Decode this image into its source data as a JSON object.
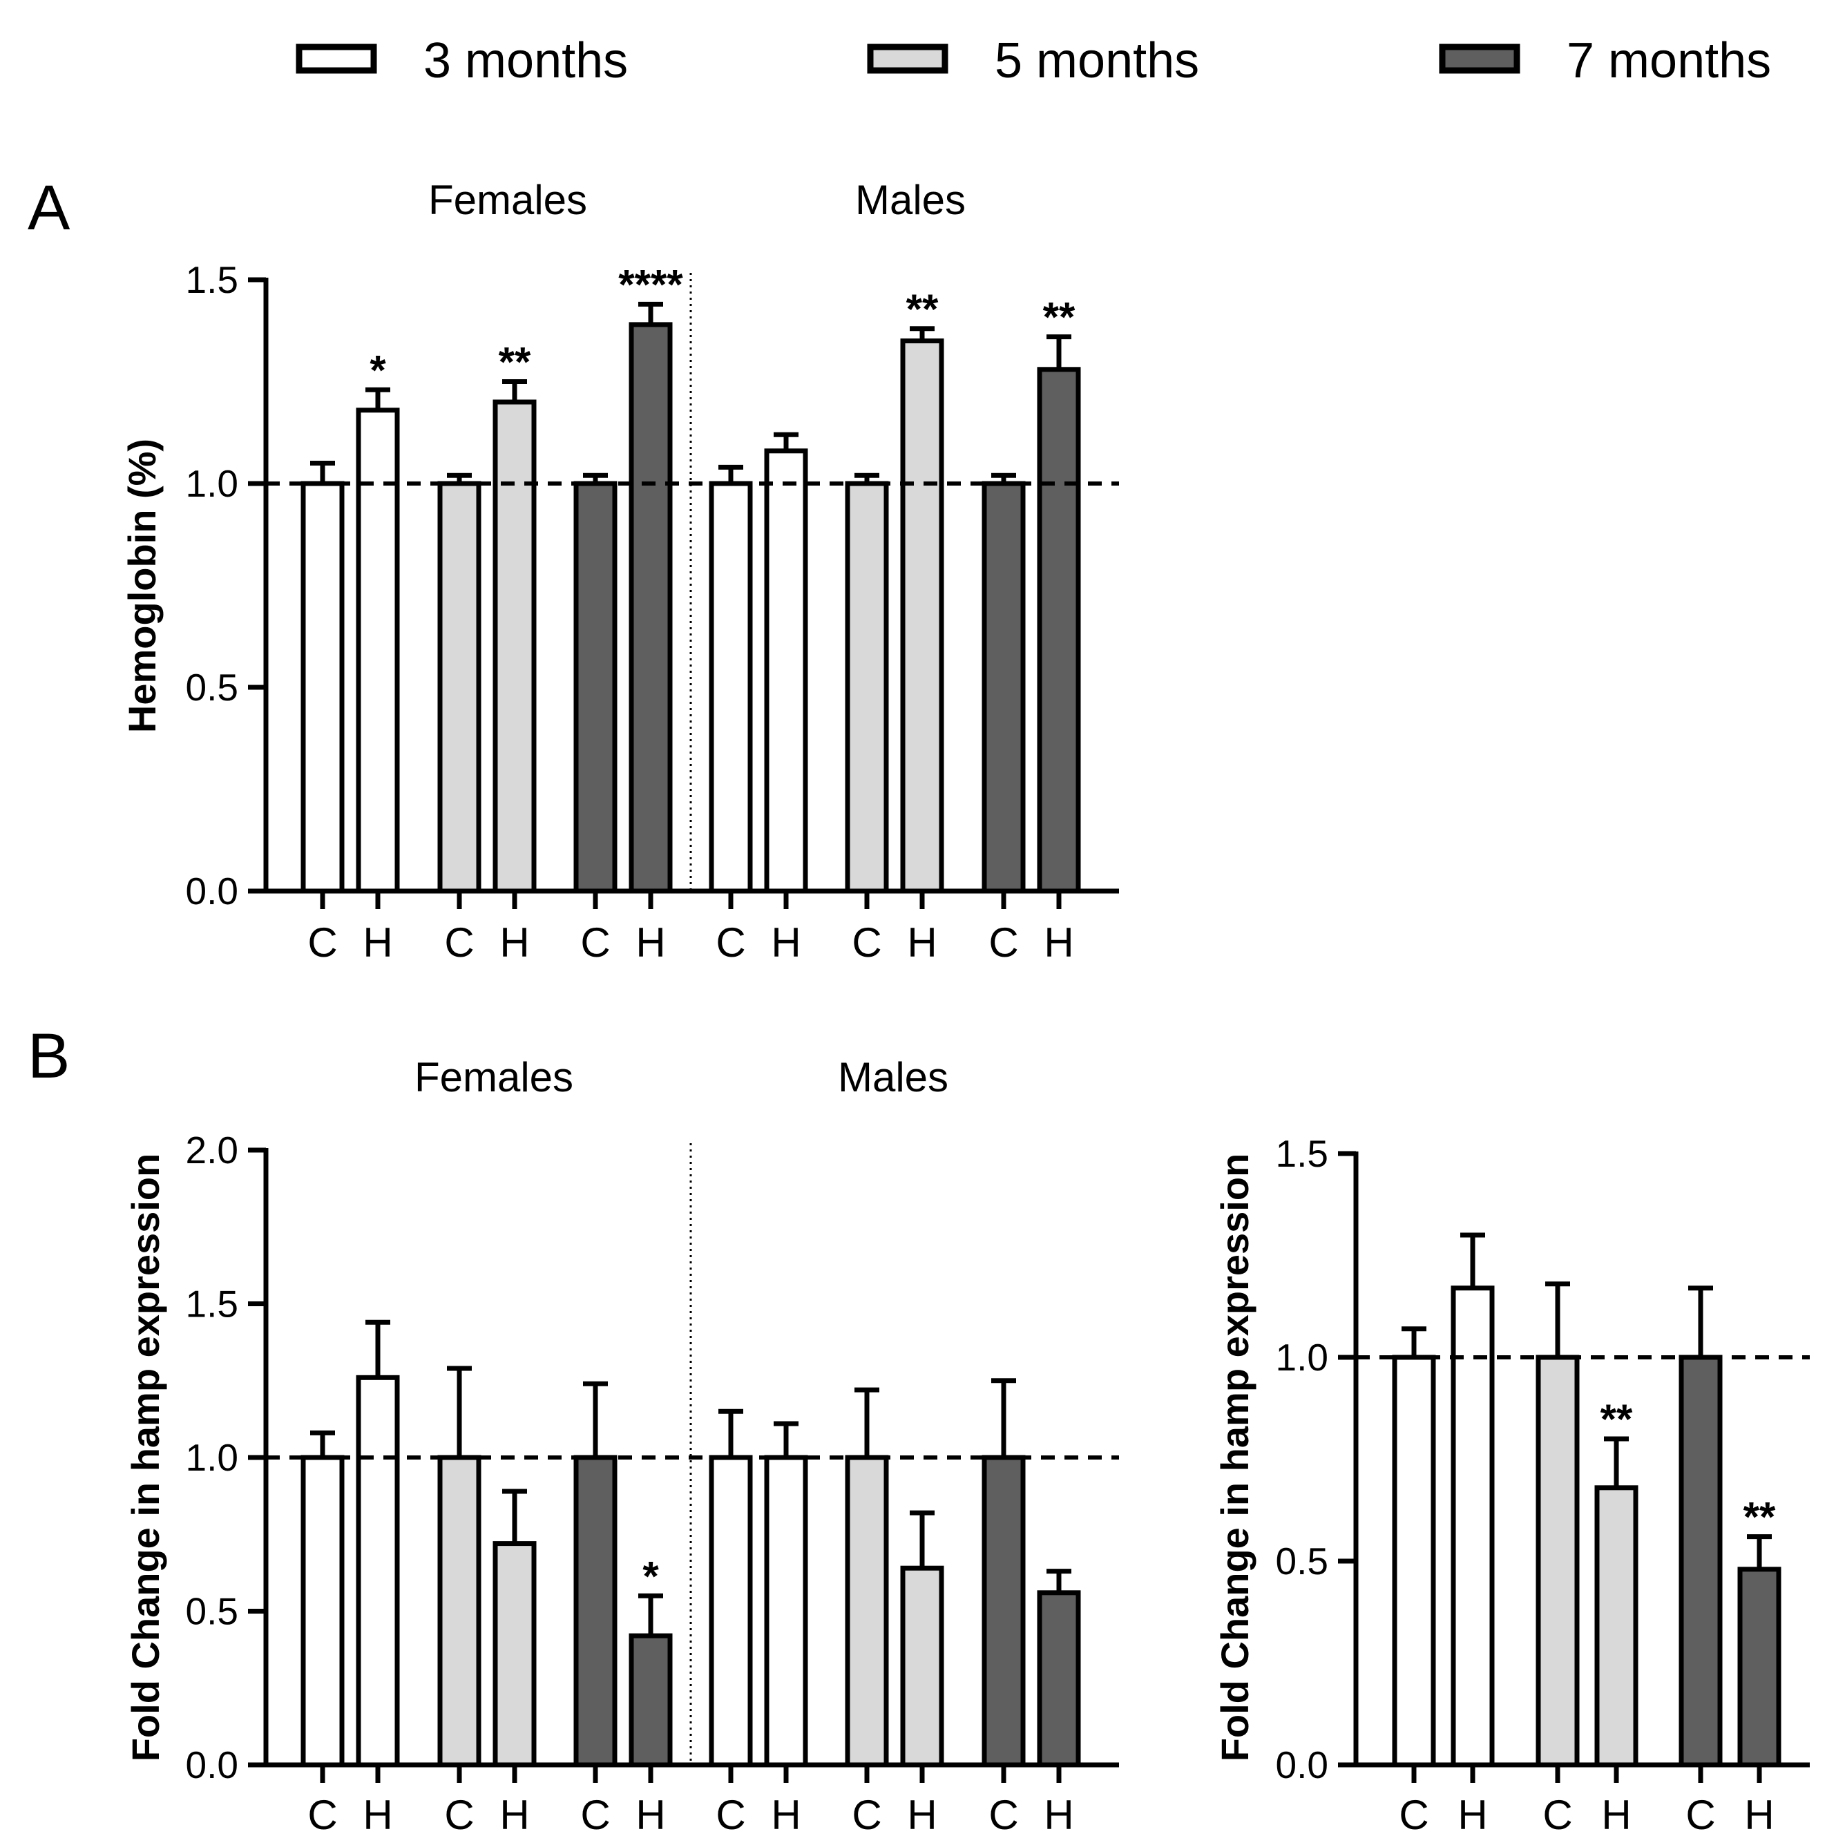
{
  "legend": [
    {
      "label": "3 months",
      "color": "#ffffff"
    },
    {
      "label": "5 months",
      "color": "#d9d9d9"
    },
    {
      "label": "7 months",
      "color": "#5f5f5f"
    }
  ],
  "chart_data": [
    {
      "panel": "A",
      "type": "bar",
      "title": "",
      "ylabel": "Hemoglobin (%)",
      "xlabel": "",
      "ylim": [
        0,
        1.5
      ],
      "yticks": [
        "0.0",
        "0.5",
        "1.0",
        "1.5"
      ],
      "reference_line": 1.0,
      "groups": [
        "Females",
        "Males"
      ],
      "categories": [
        "C",
        "H",
        "C",
        "H",
        "C",
        "H",
        "C",
        "H",
        "C",
        "H",
        "C",
        "H"
      ],
      "bars": [
        {
          "group": "Females",
          "age": "3 months",
          "cat": "C",
          "value": 1.0,
          "error": 0.05,
          "sig": ""
        },
        {
          "group": "Females",
          "age": "3 months",
          "cat": "H",
          "value": 1.18,
          "error": 0.05,
          "sig": "*"
        },
        {
          "group": "Females",
          "age": "5 months",
          "cat": "C",
          "value": 1.0,
          "error": 0.02,
          "sig": ""
        },
        {
          "group": "Females",
          "age": "5 months",
          "cat": "H",
          "value": 1.2,
          "error": 0.05,
          "sig": "**"
        },
        {
          "group": "Females",
          "age": "7 months",
          "cat": "C",
          "value": 1.0,
          "error": 0.02,
          "sig": ""
        },
        {
          "group": "Females",
          "age": "7 months",
          "cat": "H",
          "value": 1.39,
          "error": 0.05,
          "sig": "****"
        },
        {
          "group": "Males",
          "age": "3 months",
          "cat": "C",
          "value": 1.0,
          "error": 0.04,
          "sig": ""
        },
        {
          "group": "Males",
          "age": "3 months",
          "cat": "H",
          "value": 1.08,
          "error": 0.04,
          "sig": ""
        },
        {
          "group": "Males",
          "age": "5 months",
          "cat": "C",
          "value": 1.0,
          "error": 0.02,
          "sig": ""
        },
        {
          "group": "Males",
          "age": "5 months",
          "cat": "H",
          "value": 1.35,
          "error": 0.03,
          "sig": "**"
        },
        {
          "group": "Males",
          "age": "7 months",
          "cat": "C",
          "value": 1.0,
          "error": 0.02,
          "sig": ""
        },
        {
          "group": "Males",
          "age": "7 months",
          "cat": "H",
          "value": 1.28,
          "error": 0.08,
          "sig": "**"
        }
      ]
    },
    {
      "panel": "B",
      "type": "bar",
      "title": "",
      "ylabel": "Fold Change in hamp expression",
      "xlabel": "",
      "ylim": [
        0,
        2.0
      ],
      "yticks": [
        "0.0",
        "0.5",
        "1.0",
        "1.5",
        "2.0"
      ],
      "reference_line": 1.0,
      "groups": [
        "Females",
        "Males"
      ],
      "categories": [
        "C",
        "H",
        "C",
        "H",
        "C",
        "H",
        "C",
        "H",
        "C",
        "H",
        "C",
        "H"
      ],
      "bars": [
        {
          "group": "Females",
          "age": "3 months",
          "cat": "C",
          "value": 1.0,
          "error": 0.08,
          "sig": ""
        },
        {
          "group": "Females",
          "age": "3 months",
          "cat": "H",
          "value": 1.26,
          "error": 0.18,
          "sig": ""
        },
        {
          "group": "Females",
          "age": "5 months",
          "cat": "C",
          "value": 1.0,
          "error": 0.29,
          "sig": ""
        },
        {
          "group": "Females",
          "age": "5 months",
          "cat": "H",
          "value": 0.72,
          "error": 0.17,
          "sig": ""
        },
        {
          "group": "Females",
          "age": "7 months",
          "cat": "C",
          "value": 1.0,
          "error": 0.24,
          "sig": ""
        },
        {
          "group": "Females",
          "age": "7 months",
          "cat": "H",
          "value": 0.42,
          "error": 0.13,
          "sig": "*"
        },
        {
          "group": "Males",
          "age": "3 months",
          "cat": "C",
          "value": 1.0,
          "error": 0.15,
          "sig": ""
        },
        {
          "group": "Males",
          "age": "3 months",
          "cat": "H",
          "value": 1.0,
          "error": 0.11,
          "sig": ""
        },
        {
          "group": "Males",
          "age": "5 months",
          "cat": "C",
          "value": 1.0,
          "error": 0.22,
          "sig": ""
        },
        {
          "group": "Males",
          "age": "5 months",
          "cat": "H",
          "value": 0.64,
          "error": 0.18,
          "sig": ""
        },
        {
          "group": "Males",
          "age": "7 months",
          "cat": "C",
          "value": 1.0,
          "error": 0.25,
          "sig": ""
        },
        {
          "group": "Males",
          "age": "7 months",
          "cat": "H",
          "value": 0.56,
          "error": 0.07,
          "sig": ""
        }
      ]
    },
    {
      "panel": "B-right",
      "type": "bar",
      "title": "",
      "ylabel": "Fold Change in hamp expression",
      "xlabel": "",
      "ylim": [
        0,
        1.5
      ],
      "yticks": [
        "0.0",
        "0.5",
        "1.0",
        "1.5"
      ],
      "reference_line": 1.0,
      "groups": [],
      "categories": [
        "C",
        "H",
        "C",
        "H",
        "C",
        "H"
      ],
      "bars": [
        {
          "age": "3 months",
          "cat": "C",
          "value": 1.0,
          "error": 0.07,
          "sig": ""
        },
        {
          "age": "3 months",
          "cat": "H",
          "value": 1.17,
          "error": 0.13,
          "sig": ""
        },
        {
          "age": "5 months",
          "cat": "C",
          "value": 1.0,
          "error": 0.18,
          "sig": ""
        },
        {
          "age": "5 months",
          "cat": "H",
          "value": 0.68,
          "error": 0.12,
          "sig": "**"
        },
        {
          "age": "7 months",
          "cat": "C",
          "value": 1.0,
          "error": 0.17,
          "sig": ""
        },
        {
          "age": "7 months",
          "cat": "H",
          "value": 0.48,
          "error": 0.08,
          "sig": "**"
        }
      ]
    }
  ]
}
